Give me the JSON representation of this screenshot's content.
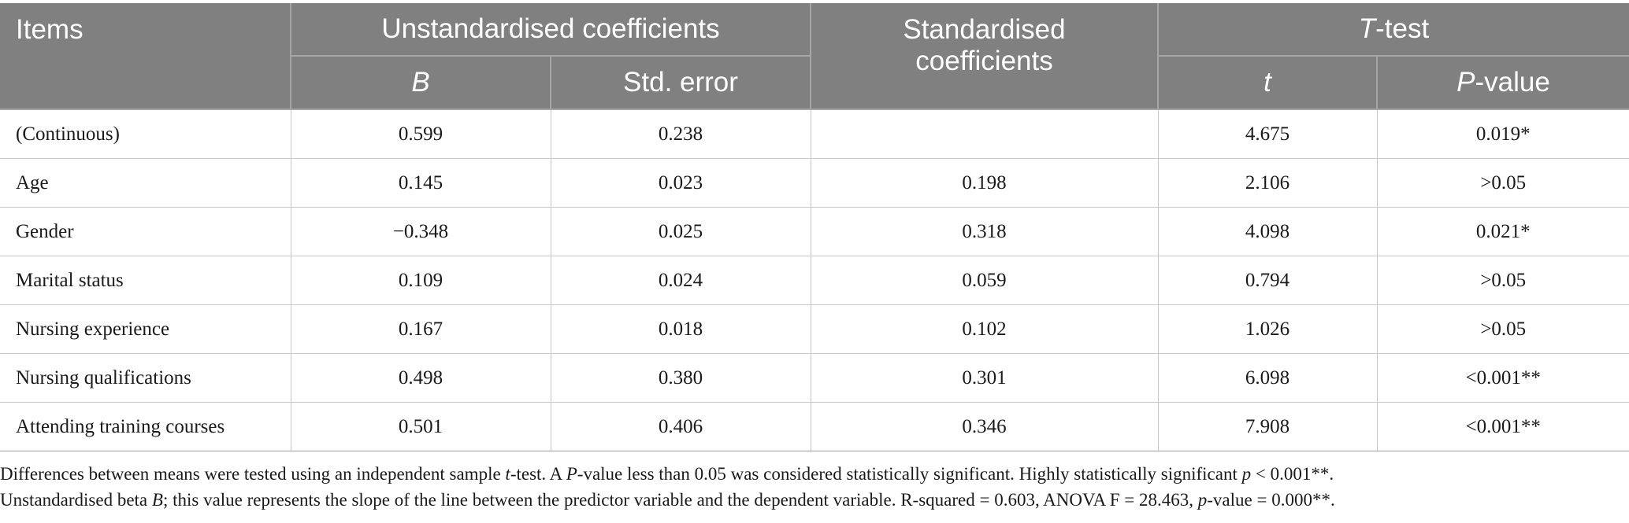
{
  "table": {
    "header": {
      "items": "Items",
      "unstd_group": "Unstandardised coefficients",
      "std_group_line1": "Standardised",
      "std_group_line2": "coefficients",
      "ttest_italic": "T",
      "ttest_rest": "-test",
      "b": "B",
      "std_error": "Std. error",
      "t": "t",
      "p_italic": "P",
      "p_rest": "-value"
    },
    "rows": [
      {
        "item": "(Continuous)",
        "b": "0.599",
        "se": "0.238",
        "std": "",
        "t": "4.675",
        "p": "0.019*"
      },
      {
        "item": "Age",
        "b": "0.145",
        "se": "0.023",
        "std": "0.198",
        "t": "2.106",
        "p": ">0.05"
      },
      {
        "item": "Gender",
        "b": "−0.348",
        "se": "0.025",
        "std": "0.318",
        "t": "4.098",
        "p": "0.021*"
      },
      {
        "item": "Marital status",
        "b": "0.109",
        "se": "0.024",
        "std": "0.059",
        "t": "0.794",
        "p": ">0.05"
      },
      {
        "item": "Nursing experience",
        "b": "0.167",
        "se": "0.018",
        "std": "0.102",
        "t": "1.026",
        "p": ">0.05"
      },
      {
        "item": "Nursing qualifications",
        "b": "0.498",
        "se": "0.380",
        "std": "0.301",
        "t": "6.098",
        "p": "<0.001**"
      },
      {
        "item": "Attending training courses",
        "b": "0.501",
        "se": "0.406",
        "std": "0.346",
        "t": "7.908",
        "p": "<0.001**"
      }
    ]
  },
  "notes": {
    "line1_a": "Differences between means were tested using an independent sample ",
    "line1_t": "t",
    "line1_b": "-test. A ",
    "line1_p": "P",
    "line1_c": "-value less than 0.05 was considered statistically significant. Highly statistically significant ",
    "line1_p2": "p",
    "line1_d": " < 0.001**.",
    "line2_a": "Unstandardised beta ",
    "line2_b": "B",
    "line2_c": "; this value represents the slope of the line between the predictor variable and the dependent variable. R-squared = 0.603, ANOVA F = 28.463, ",
    "line2_p": "p",
    "line2_d": "-value = 0.000**."
  }
}
